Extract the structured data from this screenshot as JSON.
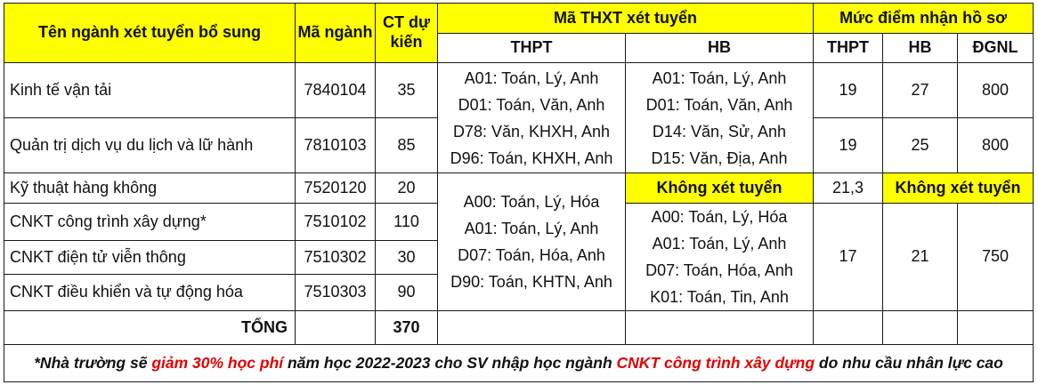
{
  "headers": {
    "name": "Tên ngành xét tuyển bổ sung",
    "code": "Mã ngành",
    "quota": "CT dự kiến",
    "combo_group": "Mã THXT xét tuyển",
    "score_group": "Mức điểm nhận hồ sơ",
    "combo_thpt": "THPT",
    "combo_hb": "HB",
    "score_thpt": "THPT",
    "score_hb": "HB",
    "score_dgnl": "ĐGNL"
  },
  "rows": [
    {
      "name": "Kinh tế vận tải",
      "code": "7840104",
      "quota": "35"
    },
    {
      "name": "Quản trị dịch vụ du lịch và lữ hành",
      "code": "7810103",
      "quota": "85"
    },
    {
      "name": "Kỹ thuật hàng không",
      "code": "7520120",
      "quota": "20"
    },
    {
      "name": "CNKT công trình xây dựng*",
      "code": "7510102",
      "quota": "110"
    },
    {
      "name": "CNKT điện tử viễn thông",
      "code": "7510302",
      "quota": "30"
    },
    {
      "name": "CNKT điều khiển và tự động hóa",
      "code": "7510303",
      "quota": "90"
    }
  ],
  "combos": {
    "thpt_a": [
      "A01: Toán, Lý, Anh",
      "D01: Toán, Văn, Anh",
      "D78: Văn, KHXH, Anh",
      "D96: Toán, KHXH, Anh"
    ],
    "hb_a": [
      "A01: Toán, Lý, Anh",
      "D01: Toán, Văn, Anh",
      "D14: Văn, Sử, Anh",
      "D15: Văn, Địa, Anh"
    ],
    "thpt_b": [
      "A00: Toán, Lý, Hóa",
      "A01: Toán, Lý, Anh",
      "D07: Toán, Hóa, Anh",
      "D90: Toán, KHTN, Anh"
    ],
    "hb_b": [
      "A00: Toán, Lý, Hóa",
      "A01: Toán, Lý, Anh",
      "D07: Toán, Hóa, Anh",
      "K01: Toán, Tin, Anh"
    ]
  },
  "scores": {
    "g1": {
      "thpt": "19",
      "hb": "27",
      "dgnl": "800"
    },
    "g2": {
      "thpt": "19",
      "hb": "25",
      "dgnl": "800"
    },
    "g3": {
      "hb_na": "Không xét tuyển",
      "thpt": "21,3",
      "other_na": "Không xét tuyển"
    },
    "g4": {
      "thpt": "17",
      "hb": "21",
      "dgnl": "750"
    }
  },
  "total": {
    "label": "TỔNG",
    "quota": "370"
  },
  "note": {
    "p1": "*Nhà trường sẽ ",
    "h1": "giảm 30% học phí",
    "p2": " năm học 2022-2023 cho SV nhập học ngành ",
    "h2": "CNKT công trình xây dựng",
    "p3": " do nhu cầu nhân lực cao"
  },
  "colors": {
    "header_bg": "#ffff00",
    "highlight_text": "#e00000"
  }
}
